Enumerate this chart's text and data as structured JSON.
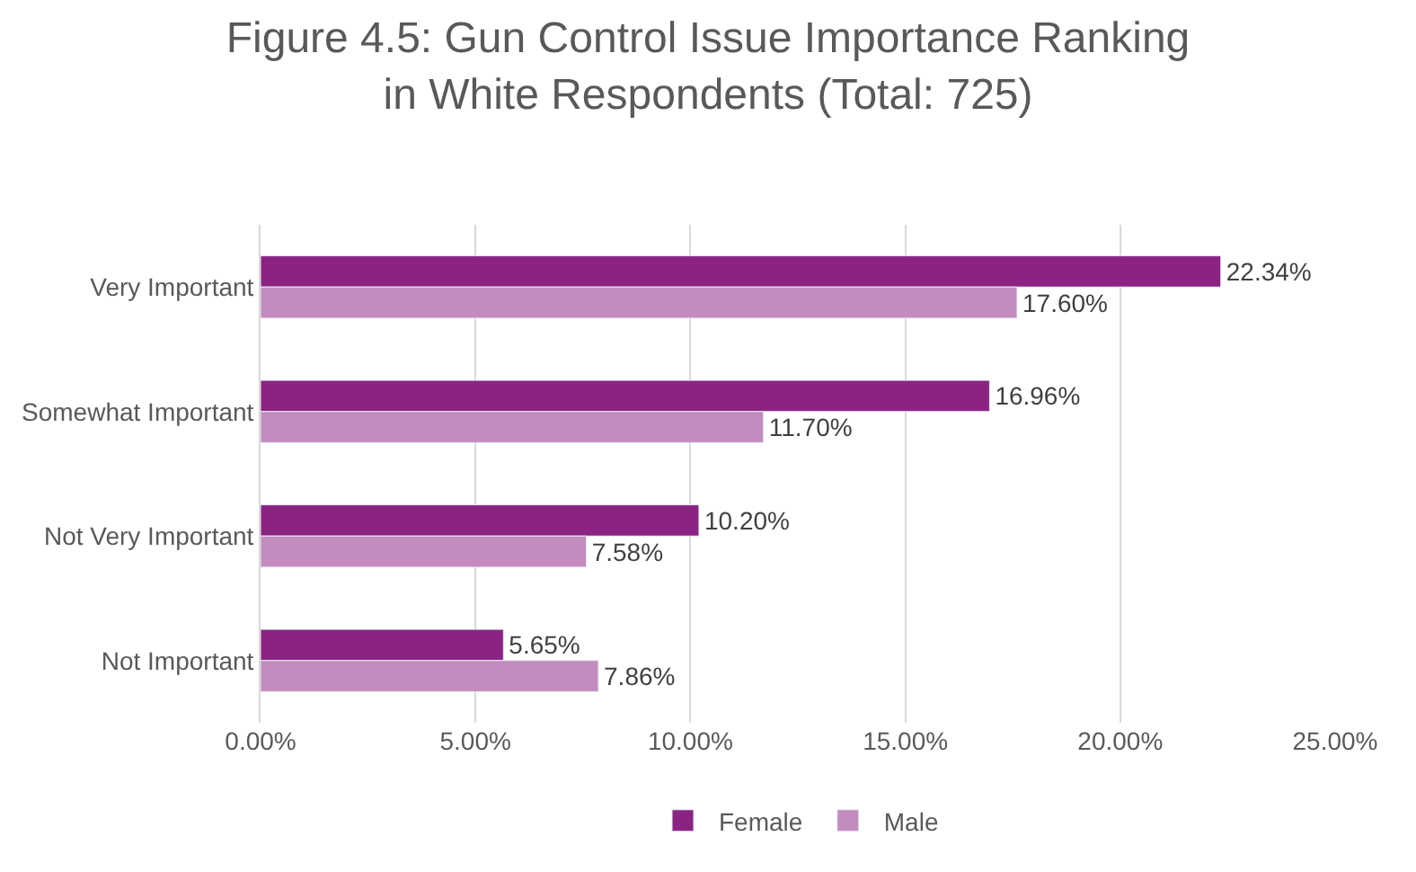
{
  "chart_data": {
    "type": "bar",
    "orientation": "horizontal",
    "title": "Figure 4.5: Gun Control Issue Importance Ranking\nin White Respondents (Total: 725)",
    "categories": [
      "Very Important",
      "Somewhat Important",
      "Not Very Important",
      "Not Important"
    ],
    "series": [
      {
        "name": "Female",
        "color": "#8b2383",
        "values": [
          22.34,
          16.96,
          10.2,
          5.65
        ],
        "value_labels": [
          "22.34%",
          "16.96%",
          "10.20%",
          "5.65%"
        ]
      },
      {
        "name": "Male",
        "color": "#c48bbf",
        "values": [
          17.6,
          11.7,
          7.58,
          7.86
        ],
        "value_labels": [
          "17.60%",
          "11.70%",
          "7.58%",
          "7.86%"
        ]
      }
    ],
    "xlim": [
      0,
      25
    ],
    "xticks": [
      {
        "value": 0,
        "label": "0.00%"
      },
      {
        "value": 5,
        "label": "5.00%"
      },
      {
        "value": 10,
        "label": "10.00%"
      },
      {
        "value": 15,
        "label": "15.00%"
      },
      {
        "value": 20,
        "label": "20.00%"
      },
      {
        "value": 25,
        "label": "25.00%"
      }
    ],
    "grid": "x",
    "legend": "bottom"
  }
}
